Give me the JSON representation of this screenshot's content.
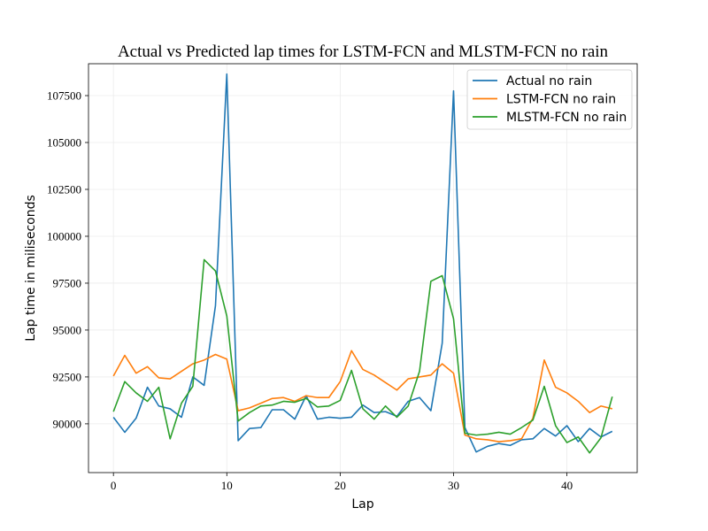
{
  "chart_data": {
    "type": "line",
    "title": "Actual vs Predicted lap times for LSTM-FCN and MLSTM-FCN no rain",
    "xlabel": "Lap",
    "ylabel": "Lap time in miliseconds",
    "xlim": [
      -2.2,
      46.2
    ],
    "ylim": [
      87400,
      109200
    ],
    "xticks": [
      0,
      10,
      20,
      30,
      40
    ],
    "yticks": [
      90000,
      92500,
      95000,
      97500,
      100000,
      102500,
      105000,
      107500
    ],
    "grid": true,
    "legend": "top-right",
    "x": [
      0,
      1,
      2,
      3,
      4,
      5,
      6,
      7,
      8,
      9,
      10,
      11,
      12,
      13,
      14,
      15,
      16,
      17,
      18,
      19,
      20,
      21,
      22,
      23,
      24,
      25,
      26,
      27,
      28,
      29,
      30,
      31,
      32,
      33,
      34,
      35,
      36,
      37,
      38,
      39,
      40,
      41,
      42,
      43,
      44
    ],
    "series": [
      {
        "name": "Actual no rain",
        "color": "#1f77b4",
        "values": [
          90350,
          89550,
          90300,
          91950,
          90950,
          90800,
          90350,
          92500,
          92050,
          96300,
          108650,
          89100,
          89750,
          89800,
          90750,
          90750,
          90250,
          91500,
          90250,
          90350,
          90300,
          90350,
          91000,
          90600,
          90650,
          90400,
          91200,
          91400,
          90700,
          94300,
          107750,
          89800,
          88500,
          88800,
          88950,
          88850,
          89150,
          89200,
          89750,
          89350,
          89900,
          89050,
          89750,
          89300,
          89600
        ]
      },
      {
        "name": "LSTM-FCN no rain",
        "color": "#ff7f0e",
        "values": [
          92550,
          93650,
          92700,
          93050,
          92450,
          92400,
          92800,
          93200,
          93400,
          93700,
          93450,
          90700,
          90850,
          91100,
          91350,
          91400,
          91200,
          91500,
          91400,
          91400,
          92250,
          93900,
          92900,
          92600,
          92200,
          91800,
          92400,
          92500,
          92600,
          93200,
          92700,
          89400,
          89200,
          89150,
          89050,
          89100,
          89200,
          90300,
          93400,
          91950,
          91650,
          91200,
          90600,
          90950,
          90800
        ]
      },
      {
        "name": "MLSTM-FCN no rain",
        "color": "#2ca02c",
        "values": [
          90650,
          92250,
          91650,
          91200,
          91950,
          89200,
          91100,
          92000,
          98750,
          98150,
          95750,
          90150,
          90600,
          90950,
          91000,
          91200,
          91150,
          91350,
          90900,
          90950,
          91250,
          92850,
          90800,
          90250,
          90950,
          90350,
          90950,
          92800,
          97600,
          97900,
          95600,
          89500,
          89400,
          89450,
          89550,
          89450,
          89800,
          90200,
          92000,
          89900,
          89000,
          89300,
          88450,
          89250,
          91450
        ]
      }
    ]
  }
}
